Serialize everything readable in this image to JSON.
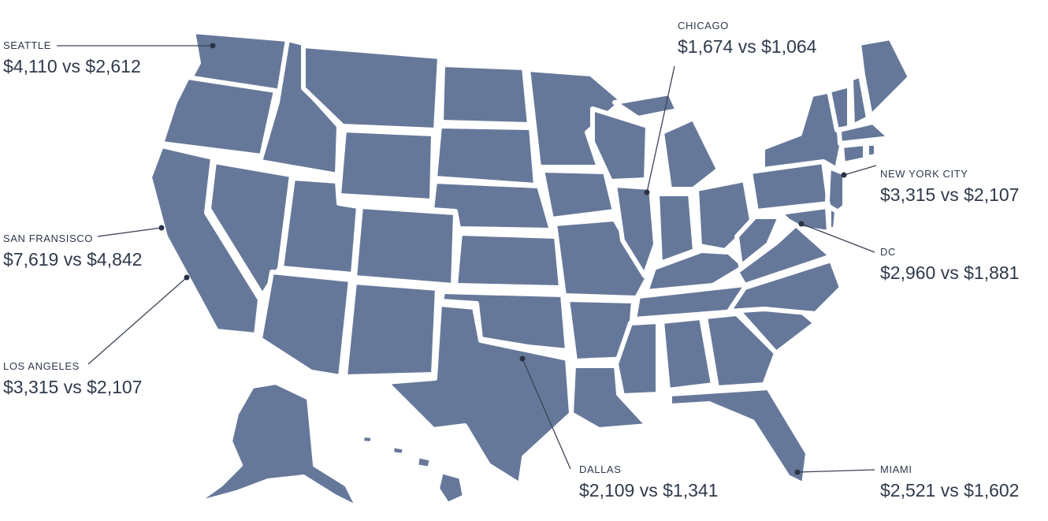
{
  "map": {
    "fill_color": "#66789a",
    "border_color": "#ffffff"
  },
  "cities": [
    {
      "id": "seattle",
      "name": "SEATTLE",
      "price": "$4,110 vs $2,612"
    },
    {
      "id": "san-francisco",
      "name": "SAN FRANSISCO",
      "price": "$7,619 vs $4,842"
    },
    {
      "id": "los-angeles",
      "name": "LOS ANGELES",
      "price": "$3,315 vs $2,107"
    },
    {
      "id": "chicago",
      "name": "CHICAGO",
      "price": "$1,674 vs $1,064"
    },
    {
      "id": "new-york-city",
      "name": "NEW YORK CITY",
      "price": "$3,315 vs $2,107"
    },
    {
      "id": "dc",
      "name": "DC",
      "price": "$2,960 vs $1,881"
    },
    {
      "id": "dallas",
      "name": "DALLAS",
      "price": "$2,109 vs $1,341"
    },
    {
      "id": "miami",
      "name": "MIAMI",
      "price": "$2,521 vs $1,602"
    }
  ]
}
